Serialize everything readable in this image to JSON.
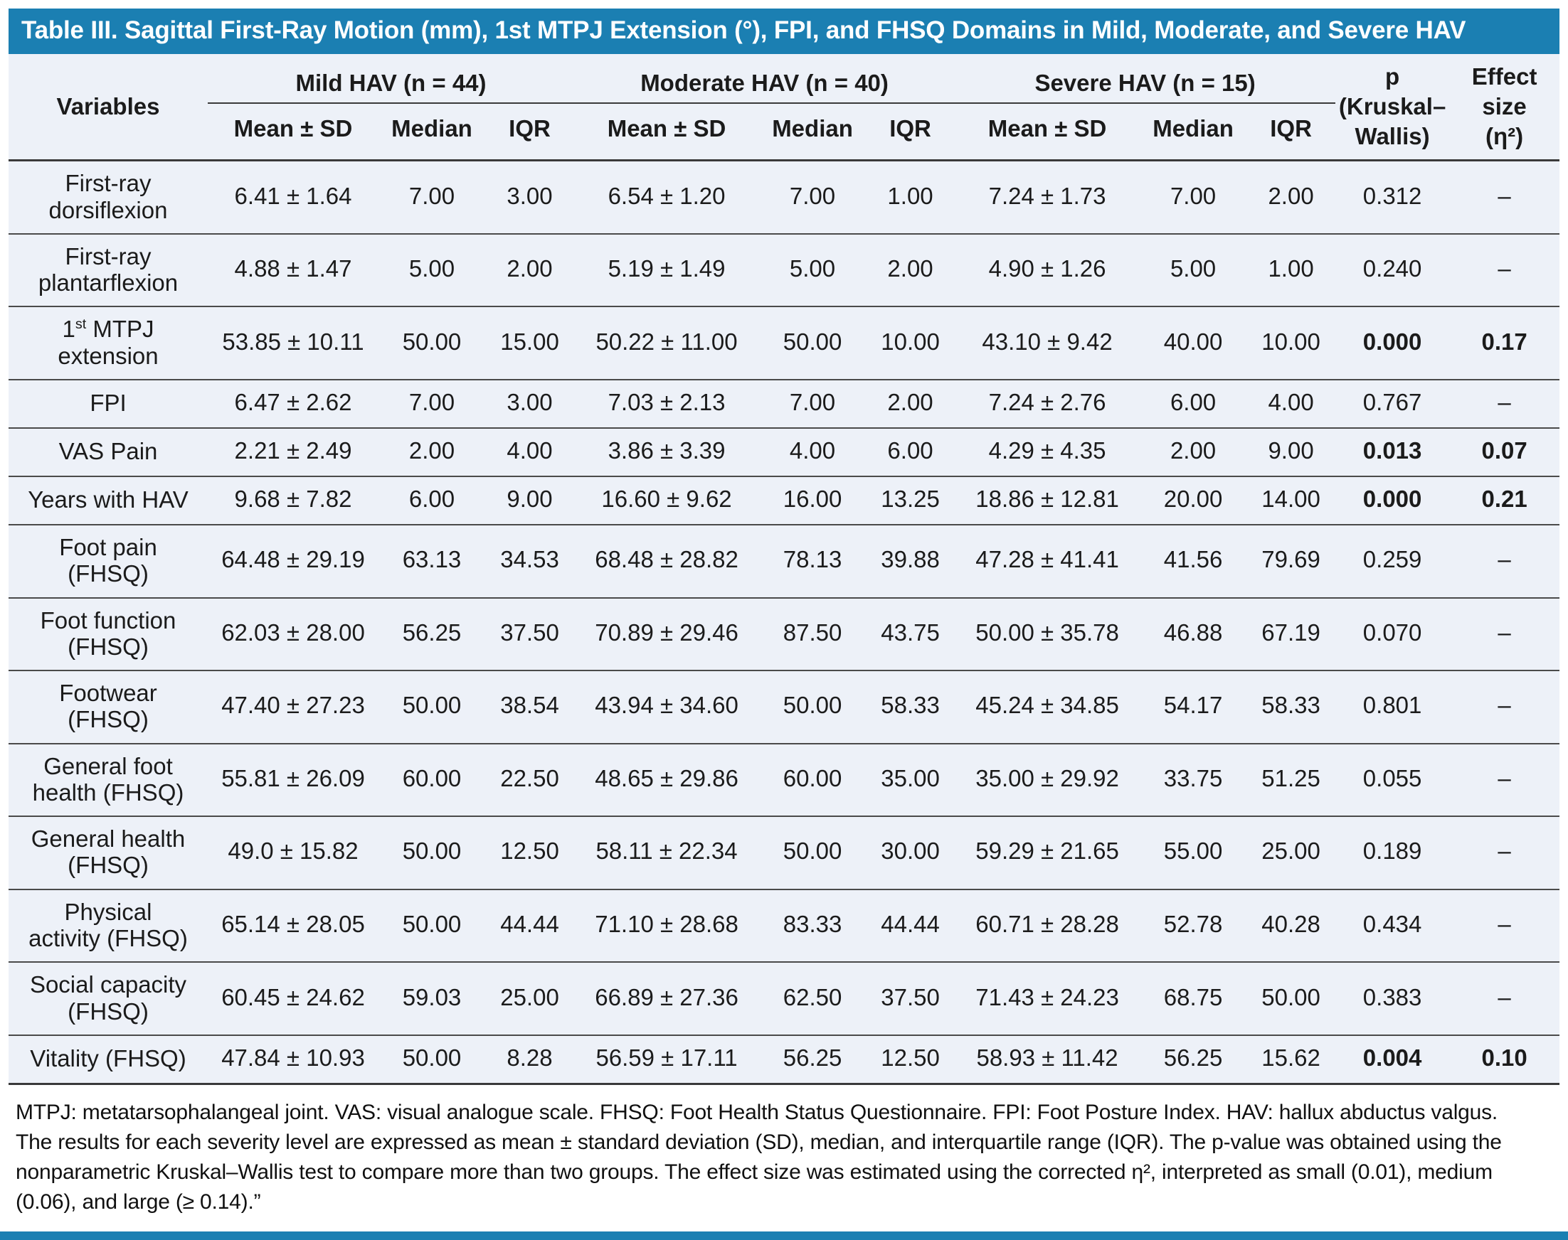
{
  "title": "Table III. Sagittal First-Ray Motion (mm), 1st MTPJ Extension (°), FPI, and FHSQ Domains in Mild, Moderate, and Severe HAV",
  "colors": {
    "accent_blue": "#1b7fb2",
    "table_background": "#edf1f8",
    "rule_dark": "#3a3a3a"
  },
  "header": {
    "variables_label": "Variables",
    "groups": [
      {
        "label": "Mild HAV (n = 44)"
      },
      {
        "label": "Moderate HAV (n = 40)"
      },
      {
        "label": "Severe HAV (n = 15)"
      }
    ],
    "sub_columns": [
      "Mean ± SD",
      "Median",
      "IQR"
    ],
    "p_lines": [
      "p",
      "(Kruskal–",
      "Wallis)"
    ],
    "effect_lines": [
      "Effect",
      "size",
      "(η²)"
    ]
  },
  "rows": [
    {
      "label_lines": [
        "First-ray",
        "dorsiflexion"
      ],
      "bold": false,
      "values": [
        "6.41 ± 1.64",
        "7.00",
        "3.00",
        "6.54 ± 1.20",
        "7.00",
        "1.00",
        "7.24 ± 1.73",
        "7.00",
        "2.00",
        "0.312",
        "–"
      ]
    },
    {
      "label_lines": [
        "First-ray",
        "plantarflexion"
      ],
      "bold": false,
      "values": [
        "4.88 ± 1.47",
        "5.00",
        "2.00",
        "5.19 ± 1.49",
        "5.00",
        "2.00",
        "4.90 ± 1.26",
        "5.00",
        "1.00",
        "0.240",
        "–"
      ]
    },
    {
      "label_lines": [
        [
          {
            "t": "1"
          },
          {
            "t": "st",
            "sup": true
          },
          {
            "t": " MTPJ"
          }
        ],
        "extension"
      ],
      "bold": true,
      "values": [
        "53.85 ± 10.11",
        "50.00",
        "15.00",
        "50.22 ± 11.00",
        "50.00",
        "10.00",
        "43.10 ± 9.42",
        "40.00",
        "10.00",
        "0.000",
        "0.17"
      ]
    },
    {
      "label_lines": [
        "FPI"
      ],
      "bold": false,
      "values": [
        "6.47 ± 2.62",
        "7.00",
        "3.00",
        "7.03 ± 2.13",
        "7.00",
        "2.00",
        "7.24 ± 2.76",
        "6.00",
        "4.00",
        "0.767",
        "–"
      ]
    },
    {
      "label_lines": [
        "VAS Pain"
      ],
      "bold": true,
      "values": [
        "2.21 ± 2.49",
        "2.00",
        "4.00",
        "3.86 ± 3.39",
        "4.00",
        "6.00",
        "4.29 ± 4.35",
        "2.00",
        "9.00",
        "0.013",
        "0.07"
      ]
    },
    {
      "label_lines": [
        "Years with HAV"
      ],
      "bold": true,
      "values": [
        "9.68 ± 7.82",
        "6.00",
        "9.00",
        "16.60 ± 9.62",
        "16.00",
        "13.25",
        "18.86 ± 12.81",
        "20.00",
        "14.00",
        "0.000",
        "0.21"
      ]
    },
    {
      "label_lines": [
        "Foot pain",
        "(FHSQ)"
      ],
      "bold": false,
      "values": [
        "64.48 ± 29.19",
        "63.13",
        "34.53",
        "68.48 ± 28.82",
        "78.13",
        "39.88",
        "47.28 ± 41.41",
        "41.56",
        "79.69",
        "0.259",
        "–"
      ]
    },
    {
      "label_lines": [
        "Foot function",
        "(FHSQ)"
      ],
      "bold": false,
      "values": [
        "62.03 ± 28.00",
        "56.25",
        "37.50",
        "70.89 ± 29.46",
        "87.50",
        "43.75",
        "50.00 ± 35.78",
        "46.88",
        "67.19",
        "0.070",
        "–"
      ]
    },
    {
      "label_lines": [
        "Footwear",
        "(FHSQ)"
      ],
      "bold": false,
      "values": [
        "47.40 ± 27.23",
        "50.00",
        "38.54",
        "43.94 ± 34.60",
        "50.00",
        "58.33",
        "45.24 ± 34.85",
        "54.17",
        "58.33",
        "0.801",
        "–"
      ]
    },
    {
      "label_lines": [
        "General foot",
        "health (FHSQ)"
      ],
      "bold": false,
      "values": [
        "55.81 ± 26.09",
        "60.00",
        "22.50",
        "48.65 ± 29.86",
        "60.00",
        "35.00",
        "35.00 ± 29.92",
        "33.75",
        "51.25",
        "0.055",
        "–"
      ]
    },
    {
      "label_lines": [
        "General health",
        "(FHSQ)"
      ],
      "bold": false,
      "values": [
        "49.0 ± 15.82",
        "50.00",
        "12.50",
        "58.11 ± 22.34",
        "50.00",
        "30.00",
        "59.29 ± 21.65",
        "55.00",
        "25.00",
        "0.189",
        "–"
      ]
    },
    {
      "label_lines": [
        "Physical",
        "activity (FHSQ)"
      ],
      "bold": false,
      "values": [
        "65.14 ± 28.05",
        "50.00",
        "44.44",
        "71.10 ± 28.68",
        "83.33",
        "44.44",
        "60.71 ± 28.28",
        "52.78",
        "40.28",
        "0.434",
        "–"
      ]
    },
    {
      "label_lines": [
        "Social capacity",
        "(FHSQ)"
      ],
      "bold": false,
      "values": [
        "60.45 ± 24.62",
        "59.03",
        "25.00",
        "66.89 ± 27.36",
        "62.50",
        "37.50",
        "71.43 ± 24.23",
        "68.75",
        "50.00",
        "0.383",
        "–"
      ]
    },
    {
      "label_lines": [
        "Vitality (FHSQ)"
      ],
      "bold": true,
      "values": [
        "47.84 ± 10.93",
        "50.00",
        "8.28",
        "56.59 ± 17.11",
        "56.25",
        "12.50",
        "58.93 ± 11.42",
        "56.25",
        "15.62",
        "0.004",
        "0.10"
      ]
    }
  ],
  "footnotes": [
    "MTPJ: metatarsophalangeal joint. VAS: visual analogue scale. FHSQ: Foot Health Status Questionnaire. FPI: Foot Posture Index. HAV: hallux abductus valgus.",
    "The results for each severity level are expressed as mean ± standard deviation (SD), median, and interquartile range (IQR). The p-value was obtained using the nonparametric Kruskal–Wallis test to compare more than two groups. The effect size was estimated using the corrected η², interpreted as small (0.01), medium (0.06), and large (≥ 0.14).”"
  ]
}
